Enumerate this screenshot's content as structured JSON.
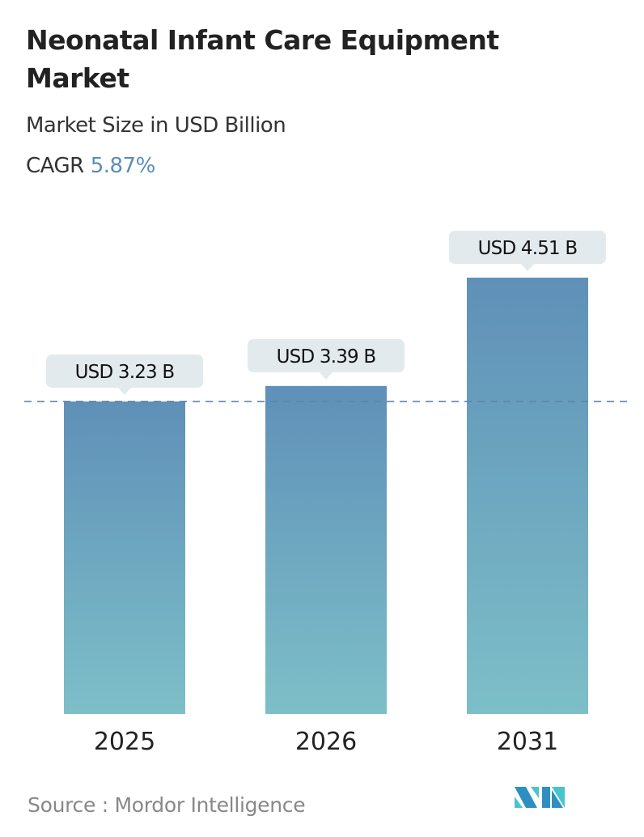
{
  "header": {
    "title": "Neonatal Infant Care Equipment Market",
    "subtitle": "Market Size in USD Billion",
    "cagr_label": "CAGR",
    "cagr_value": "5.87%"
  },
  "chart_data": {
    "type": "bar",
    "categories": [
      "2025",
      "2026",
      "2031"
    ],
    "values": [
      3.23,
      3.39,
      4.51
    ],
    "data_labels": [
      "USD 3.23 B",
      "USD 3.39 B",
      "USD 4.51 B"
    ],
    "title": "Neonatal Infant Care Equipment Market",
    "xlabel": "",
    "ylabel": "Market Size in USD Billion",
    "reference_line": 3.23,
    "grid": false,
    "colors": {
      "bar_top": "#5f90b8",
      "bar_bottom": "#7dbfc8",
      "label_bg": "#e3eaee",
      "ref_line": "#5a86ad"
    }
  },
  "footer": {
    "source": "Source :  Mordor Intelligence",
    "logo_text": "Mordor Intelligence"
  }
}
